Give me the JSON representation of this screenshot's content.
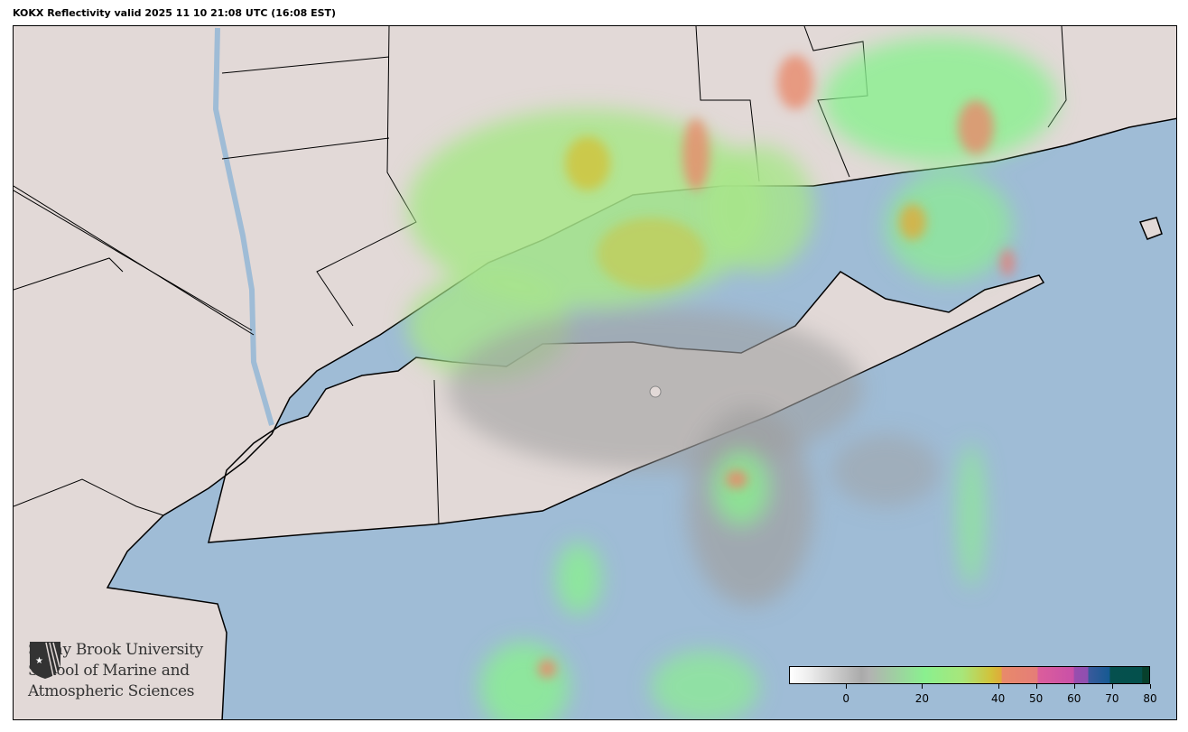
{
  "title": "KOKX Reflectivity valid 2025 11 10 21:08 UTC (16:08 EST)",
  "logo": {
    "lines": [
      "Stony Brook University",
      "School of Marine and",
      "Atmospheric Sciences"
    ],
    "icon": "stony-brook-shield-icon"
  },
  "colorbar": {
    "ticks": [
      "0",
      "20",
      "40",
      "50",
      "60",
      "70",
      "80"
    ],
    "tick_values": [
      0,
      20,
      40,
      50,
      60,
      70,
      80
    ],
    "range": [
      -15,
      80
    ],
    "colors": {
      "low": "#ffffff",
      "gray": "#aaaaaa",
      "green": "#8af08f",
      "yellow": "#d2c23a",
      "orange": "#e88a6a",
      "pink": "#dc5e9b",
      "purple": "#9a4eae",
      "blue": "#155a92",
      "teal": "#05504e",
      "dark": "#07402c"
    }
  },
  "map": {
    "land_color": "#e2d9d7",
    "water_color": "#9fbcd6",
    "radar_site": "KOKX"
  }
}
